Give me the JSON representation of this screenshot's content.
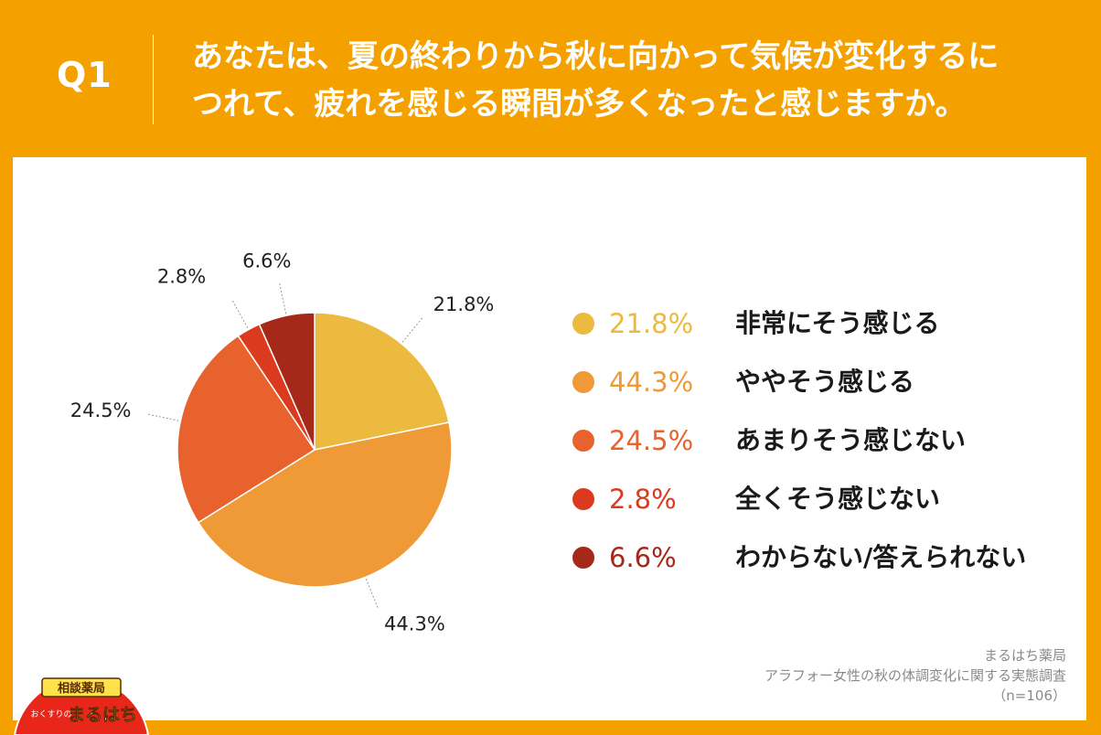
{
  "header": {
    "q_label": "Q1",
    "question_lines": [
      "あなたは、夏の終わりから秋に向かって気候が変化するに",
      "つれて、疲れを感じる瞬間が多くなったと感じますか。"
    ]
  },
  "chart_data": {
    "type": "pie",
    "title": "",
    "categories": [
      "非常にそう感じる",
      "ややそう感じる",
      "あまりそう感じない",
      "全くそう感じない",
      "わからない/答えられない"
    ],
    "values": [
      21.8,
      44.3,
      24.5,
      2.8,
      6.6
    ],
    "value_labels": [
      "21.8%",
      "44.3%",
      "24.5%",
      "2.8%",
      "6.6%"
    ],
    "colors": [
      "#ecba3e",
      "#ef9a36",
      "#e8622d",
      "#db3a1f",
      "#a62819"
    ],
    "start": "12 o'clock, clockwise",
    "legend_position": "right"
  },
  "legend": [
    {
      "value": "21.8%",
      "label": "非常にそう感じる",
      "color": "#ecba3e"
    },
    {
      "value": "44.3%",
      "label": "ややそう感じる",
      "color": "#ef9a36"
    },
    {
      "value": "24.5%",
      "label": "あまりそう感じない",
      "color": "#e8622d"
    },
    {
      "value": "2.8%",
      "label": "全くそう感じない",
      "color": "#db3a1f"
    },
    {
      "value": "6.6%",
      "label": "わからない/答えられない",
      "color": "#a62819"
    }
  ],
  "source": {
    "org": "まるはち薬局",
    "survey": "アラフォー女性の秋の体調変化に関する実態調査",
    "n": "（n=106）"
  },
  "logo": {
    "top_text": "相談薬局",
    "small_text": "おくすりの",
    "brand_text": "まるはち"
  }
}
